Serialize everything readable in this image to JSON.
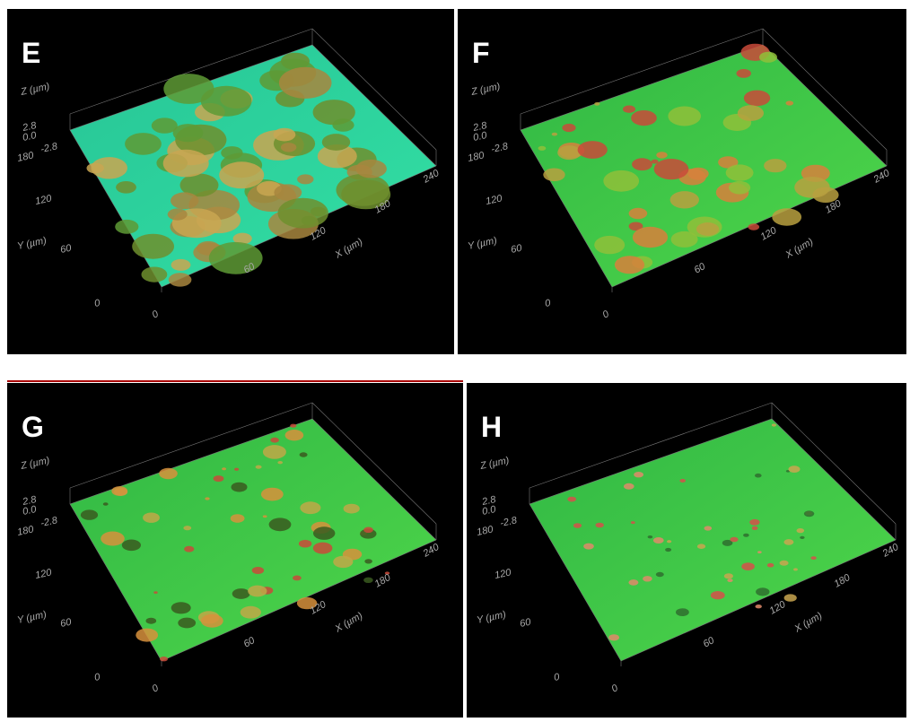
{
  "panels": [
    {
      "label": "E",
      "z_axis": {
        "title": "Z (µm)",
        "ticks": [
          "2.8",
          "0.0",
          "-2.8"
        ]
      },
      "y_axis": {
        "title": "Y (µm)",
        "ticks": [
          "180",
          "120",
          "60",
          "0"
        ]
      },
      "x_axis": {
        "title": "X (µm)",
        "ticks": [
          "0",
          "60",
          "120",
          "180",
          "240"
        ]
      }
    },
    {
      "label": "F",
      "z_axis": {
        "title": "Z (µm)",
        "ticks": [
          "2.8",
          "0.0",
          "-2.8"
        ]
      },
      "y_axis": {
        "title": "Y (µm)",
        "ticks": [
          "180",
          "120",
          "60",
          "0"
        ]
      },
      "x_axis": {
        "title": "X (µm)",
        "ticks": [
          "0",
          "60",
          "120",
          "180",
          "240"
        ]
      }
    },
    {
      "label": "G",
      "z_axis": {
        "title": "Z (µm)",
        "ticks": [
          "2.8",
          "0.0",
          "-2.8"
        ]
      },
      "y_axis": {
        "title": "Y (µm)",
        "ticks": [
          "180",
          "120",
          "60",
          "0"
        ]
      },
      "x_axis": {
        "title": "X (µm)",
        "ticks": [
          "0",
          "60",
          "120",
          "180",
          "240"
        ]
      }
    },
    {
      "label": "H",
      "z_axis": {
        "title": "Z (µm)",
        "ticks": [
          "2.8",
          "0.0",
          "-2.8"
        ]
      },
      "y_axis": {
        "title": "Y (µm)",
        "ticks": [
          "180",
          "120",
          "60",
          "0"
        ]
      },
      "x_axis": {
        "title": "X (µm)",
        "ticks": [
          "0",
          "60",
          "120",
          "180",
          "240"
        ]
      }
    }
  ]
}
